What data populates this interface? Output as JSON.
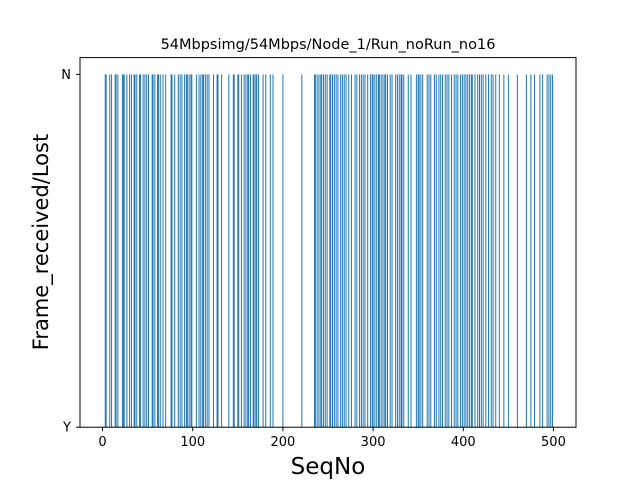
{
  "chart_data": {
    "type": "bar",
    "title": "54Mbpsimg/54Mbps/Node_1/Run_noRun_no16",
    "xlabel": "SeqNo",
    "ylabel": "Frame_received/Lost",
    "xlim": [
      -25,
      525
    ],
    "xticks": [
      0,
      100,
      200,
      300,
      400,
      500
    ],
    "xtick_labels": [
      "0",
      "100",
      "200",
      "300",
      "400",
      "500"
    ],
    "ytick_labels": [
      "Y",
      "N"
    ],
    "bar_color": "#1f77b4",
    "bar_value": "N",
    "lost_seq_no": [
      3,
      4,
      8,
      10,
      14,
      15,
      17,
      22,
      23,
      24,
      27,
      30,
      32,
      35,
      36,
      38,
      41,
      42,
      45,
      47,
      49,
      51,
      55,
      56,
      58,
      61,
      62,
      64,
      67,
      70,
      76,
      77,
      80,
      84,
      86,
      88,
      91,
      93,
      94,
      96,
      98,
      99,
      104,
      107,
      109,
      111,
      112,
      114,
      116,
      118,
      123,
      127,
      128,
      132,
      140,
      145,
      146,
      150,
      151,
      154,
      157,
      159,
      161,
      162,
      164,
      167,
      168,
      170,
      171,
      173,
      178,
      181,
      186,
      189,
      200,
      221,
      235,
      236,
      238,
      240,
      242,
      243,
      245,
      247,
      249,
      252,
      253,
      255,
      257,
      259,
      261,
      264,
      266,
      268,
      270,
      273,
      276,
      280,
      282,
      285,
      287,
      289,
      291,
      294,
      297,
      299,
      300,
      302,
      304,
      306,
      307,
      309,
      311,
      313,
      314,
      316,
      319,
      321,
      325,
      327,
      329,
      331,
      332,
      334,
      339,
      342,
      348,
      350,
      351,
      353,
      355,
      360,
      362,
      364,
      368,
      370,
      373,
      375,
      377,
      380,
      382,
      384,
      387,
      390,
      392,
      394,
      397,
      399,
      401,
      403,
      405,
      407,
      409,
      410,
      413,
      416,
      418,
      420,
      422,
      425,
      428,
      431,
      433,
      436,
      440,
      445,
      450,
      460,
      470,
      475,
      479,
      485,
      488,
      493,
      495,
      497,
      499
    ]
  }
}
